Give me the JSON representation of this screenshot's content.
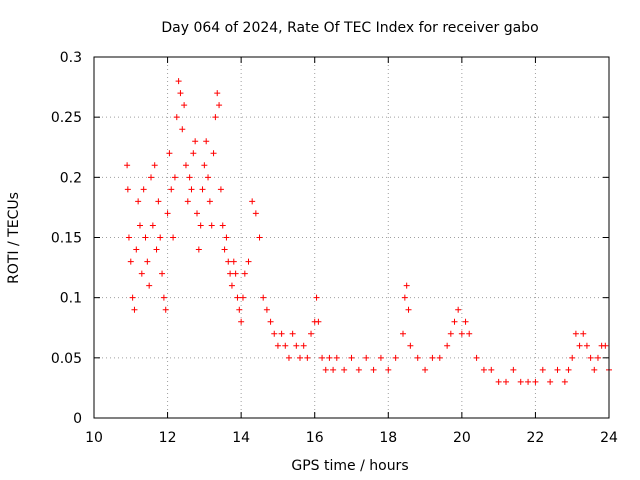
{
  "chart_data": {
    "type": "scatter",
    "title": "Day 064 of 2024, Rate Of TEC Index for receiver gabo",
    "xlabel": "GPS time / hours",
    "ylabel": "ROTI / TECUs",
    "xlim": [
      10,
      24
    ],
    "ylim": [
      0,
      0.3
    ],
    "x_ticks": [
      10,
      12,
      14,
      16,
      18,
      20,
      22,
      24
    ],
    "x_tick_labels": [
      "10",
      "12",
      "14",
      "16",
      "18",
      "20",
      "22",
      "24"
    ],
    "y_ticks": [
      0,
      0.05,
      0.1,
      0.15,
      0.2,
      0.25,
      0.3
    ],
    "y_tick_labels": [
      "0",
      "0.05",
      "0.1",
      "0.15",
      "0.2",
      "0.25",
      "0.3"
    ],
    "grid": true,
    "marker": "+",
    "series": [
      {
        "name": "ROTI",
        "color": "#ff0000",
        "x": [
          10.9,
          10.92,
          10.95,
          11.0,
          11.05,
          11.1,
          11.15,
          11.2,
          11.25,
          11.3,
          11.35,
          11.4,
          11.45,
          11.5,
          11.55,
          11.6,
          11.65,
          11.7,
          11.75,
          11.8,
          11.85,
          11.9,
          11.95,
          12.0,
          12.05,
          12.1,
          12.15,
          12.2,
          12.25,
          12.3,
          12.35,
          12.4,
          12.45,
          12.5,
          12.55,
          12.6,
          12.65,
          12.7,
          12.75,
          12.8,
          12.85,
          12.9,
          12.95,
          13.0,
          13.05,
          13.1,
          13.15,
          13.2,
          13.25,
          13.3,
          13.35,
          13.4,
          13.45,
          13.5,
          13.55,
          13.6,
          13.65,
          13.7,
          13.75,
          13.8,
          13.85,
          13.9,
          13.95,
          14.0,
          14.05,
          14.1,
          14.2,
          14.3,
          14.4,
          14.5,
          14.6,
          14.7,
          14.8,
          14.9,
          15.0,
          15.1,
          15.2,
          15.3,
          15.4,
          15.5,
          15.6,
          15.7,
          15.8,
          15.9,
          16.0,
          16.05,
          16.1,
          16.2,
          16.3,
          16.4,
          16.5,
          16.6,
          16.8,
          17.0,
          17.2,
          17.4,
          17.6,
          17.8,
          18.0,
          18.2,
          18.4,
          18.45,
          18.5,
          18.55,
          18.6,
          18.8,
          19.0,
          19.2,
          19.4,
          19.6,
          19.7,
          19.8,
          19.9,
          20.0,
          20.1,
          20.2,
          20.4,
          20.6,
          20.8,
          21.0,
          21.2,
          21.4,
          21.6,
          21.8,
          22.0,
          22.2,
          22.4,
          22.6,
          22.8,
          22.9,
          23.0,
          23.1,
          23.2,
          23.3,
          23.4,
          23.5,
          23.6,
          23.7,
          23.8,
          23.9,
          24.0
        ],
        "y": [
          0.21,
          0.19,
          0.15,
          0.13,
          0.1,
          0.09,
          0.14,
          0.18,
          0.16,
          0.12,
          0.19,
          0.15,
          0.13,
          0.11,
          0.2,
          0.16,
          0.21,
          0.14,
          0.18,
          0.15,
          0.12,
          0.1,
          0.09,
          0.17,
          0.22,
          0.19,
          0.15,
          0.2,
          0.25,
          0.28,
          0.27,
          0.24,
          0.26,
          0.21,
          0.18,
          0.2,
          0.19,
          0.22,
          0.23,
          0.17,
          0.14,
          0.16,
          0.19,
          0.21,
          0.23,
          0.2,
          0.18,
          0.16,
          0.22,
          0.25,
          0.27,
          0.26,
          0.19,
          0.16,
          0.14,
          0.15,
          0.13,
          0.12,
          0.11,
          0.13,
          0.12,
          0.1,
          0.09,
          0.08,
          0.1,
          0.12,
          0.13,
          0.18,
          0.17,
          0.15,
          0.1,
          0.09,
          0.08,
          0.07,
          0.06,
          0.07,
          0.06,
          0.05,
          0.07,
          0.06,
          0.05,
          0.06,
          0.05,
          0.07,
          0.08,
          0.1,
          0.08,
          0.05,
          0.04,
          0.05,
          0.04,
          0.05,
          0.04,
          0.05,
          0.04,
          0.05,
          0.04,
          0.05,
          0.04,
          0.05,
          0.07,
          0.1,
          0.11,
          0.09,
          0.06,
          0.05,
          0.04,
          0.05,
          0.05,
          0.06,
          0.07,
          0.08,
          0.09,
          0.07,
          0.08,
          0.07,
          0.05,
          0.04,
          0.04,
          0.03,
          0.03,
          0.04,
          0.03,
          0.03,
          0.03,
          0.04,
          0.03,
          0.04,
          0.03,
          0.04,
          0.05,
          0.07,
          0.06,
          0.07,
          0.06,
          0.05,
          0.04,
          0.05,
          0.06,
          0.06,
          0.04
        ]
      }
    ]
  }
}
